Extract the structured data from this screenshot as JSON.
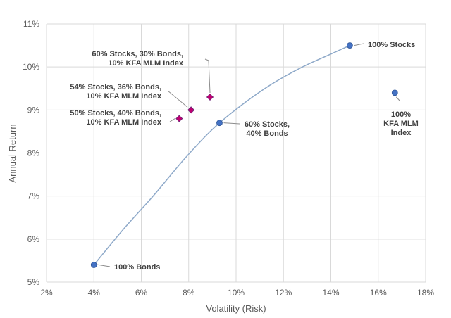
{
  "chart_data": {
    "type": "scatter",
    "title": "",
    "xlabel": "Volatility (Risk)",
    "ylabel": "Annual Return",
    "xlim": [
      2,
      18
    ],
    "ylim": [
      5,
      11
    ],
    "x_ticks": [
      2,
      4,
      6,
      8,
      10,
      12,
      14,
      16,
      18
    ],
    "y_ticks": [
      5,
      6,
      7,
      8,
      9,
      10,
      11
    ],
    "x_tick_labels": [
      "2%",
      "4%",
      "6%",
      "8%",
      "10%",
      "12%",
      "14%",
      "16%",
      "18%"
    ],
    "y_tick_labels": [
      "5%",
      "6%",
      "7%",
      "8%",
      "9%",
      "10%",
      "11%"
    ],
    "grid": true,
    "colors": {
      "circle": "#4472C4",
      "diamond": "#C00070",
      "curve": "#8EA9C9",
      "grid": "#D9D9D9",
      "leader": "#8C8C8C"
    },
    "frontier_curve": {
      "x": [
        4.0,
        5.2,
        6.5,
        7.8,
        9.0,
        10.2,
        11.5,
        12.8,
        14.0,
        14.8
      ],
      "y": [
        5.4,
        6.2,
        7.0,
        7.85,
        8.55,
        9.1,
        9.6,
        10.0,
        10.3,
        10.5
      ]
    },
    "points": [
      {
        "id": "bonds100",
        "x": 4.0,
        "y": 5.4,
        "marker": "circle",
        "lines": [
          "100% Bonds"
        ]
      },
      {
        "id": "s60b40",
        "x": 9.3,
        "y": 8.7,
        "marker": "circle",
        "lines": [
          "60% Stocks,",
          "40% Bonds"
        ]
      },
      {
        "id": "stocks100",
        "x": 14.8,
        "y": 10.5,
        "marker": "circle",
        "lines": [
          "100% Stocks"
        ]
      },
      {
        "id": "kfa100",
        "x": 16.7,
        "y": 9.4,
        "marker": "circle",
        "lines": [
          "100%",
          "KFA MLM",
          "Index"
        ]
      },
      {
        "id": "s50b40k10",
        "x": 7.6,
        "y": 8.8,
        "marker": "diamond",
        "lines": [
          "50% Stocks, 40% Bonds,",
          "10% KFA MLM Index"
        ]
      },
      {
        "id": "s54b36k10",
        "x": 8.1,
        "y": 9.0,
        "marker": "diamond",
        "lines": [
          "54% Stocks, 36% Bonds,",
          "10% KFA MLM Index"
        ]
      },
      {
        "id": "s60b30k10",
        "x": 8.9,
        "y": 9.3,
        "marker": "diamond",
        "lines": [
          "60% Stocks, 30% Bonds,",
          "10% KFA MLM Index"
        ]
      }
    ]
  }
}
